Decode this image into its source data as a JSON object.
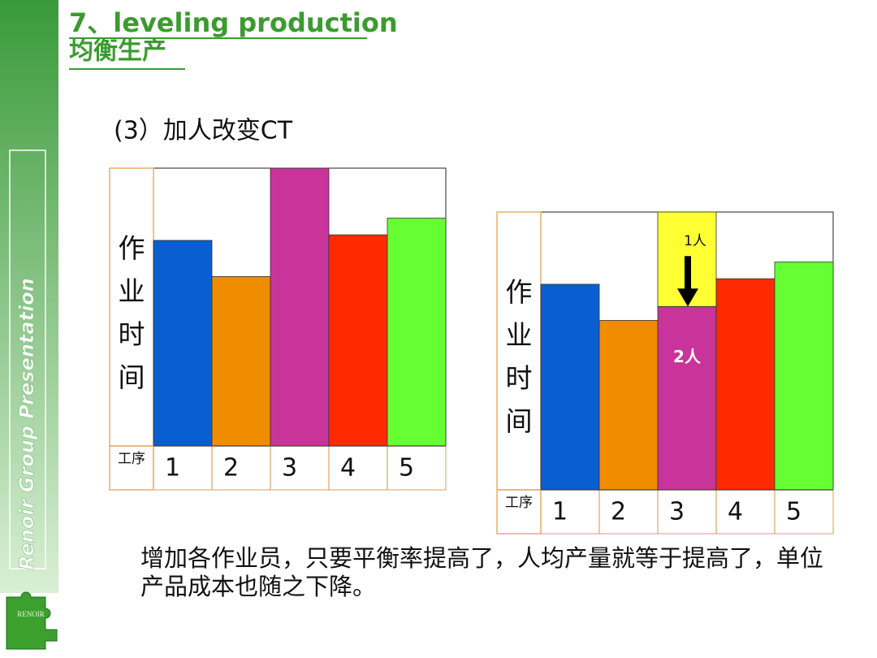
{
  "header": {
    "title": "7、leveling production",
    "subtitle": "均衡生产"
  },
  "sidebar": {
    "text": "Renoir Group Presentation",
    "logo": "RENOIR"
  },
  "section": "(3）加人改变CT",
  "chart_data": [
    {
      "type": "bar",
      "y_label": "作业时间",
      "x_label": "工序",
      "categories": [
        "1",
        "2",
        "3",
        "4",
        "5"
      ],
      "values": [
        74,
        61,
        100,
        76,
        82
      ],
      "colors": [
        "#0a5fd0",
        "#f08c00",
        "#c8349a",
        "#ff2a00",
        "#66ff33"
      ],
      "ylim": [
        0,
        100
      ]
    },
    {
      "type": "bar",
      "y_label": "作业时间",
      "x_label": "工序",
      "categories": [
        "1",
        "2",
        "3",
        "4",
        "5"
      ],
      "values": [
        74,
        61,
        66,
        76,
        82
      ],
      "colors": [
        "#0a5fd0",
        "#f08c00",
        "#c8349a",
        "#ff2a00",
        "#66ff33"
      ],
      "removed": [
        null,
        null,
        34,
        null,
        null
      ],
      "removed_color": "#ffff33",
      "annotations": [
        "1人",
        "2人"
      ],
      "ylim": [
        0,
        100
      ]
    }
  ],
  "caption": "增加各作业员，只要平衡率提高了，人均产量就等于提高了，单位产品成本也随之下降。"
}
